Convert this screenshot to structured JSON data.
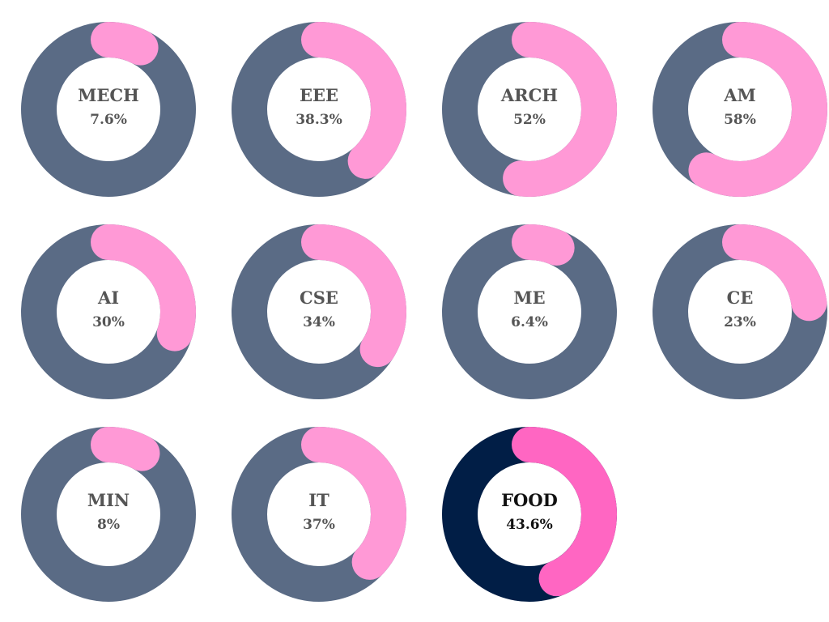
{
  "chart_data": {
    "type": "donut",
    "unit": "%",
    "colors": {
      "ring": "#5a6b85",
      "arc": "#ff99d6",
      "highlight_ring": "#011e46",
      "highlight_arc": "#ff66c2"
    },
    "items": [
      {
        "label": "MECH",
        "value": 7.6,
        "value_label": "7.6%"
      },
      {
        "label": "EEE",
        "value": 38.3,
        "value_label": "38.3%"
      },
      {
        "label": "ARCH",
        "value": 52,
        "value_label": "52%"
      },
      {
        "label": "AM",
        "value": 58,
        "value_label": "58%"
      },
      {
        "label": "AI",
        "value": 30,
        "value_label": "30%"
      },
      {
        "label": "CSE",
        "value": 34,
        "value_label": "34%"
      },
      {
        "label": "ME",
        "value": 6.4,
        "value_label": "6.4%"
      },
      {
        "label": "CE",
        "value": 23,
        "value_label": "23%"
      },
      {
        "label": "MIN",
        "value": 8,
        "value_label": "8%"
      },
      {
        "label": "IT",
        "value": 37,
        "value_label": "37%"
      },
      {
        "label": "FOOD",
        "value": 43.6,
        "value_label": "43.6%",
        "highlight": true
      }
    ]
  }
}
